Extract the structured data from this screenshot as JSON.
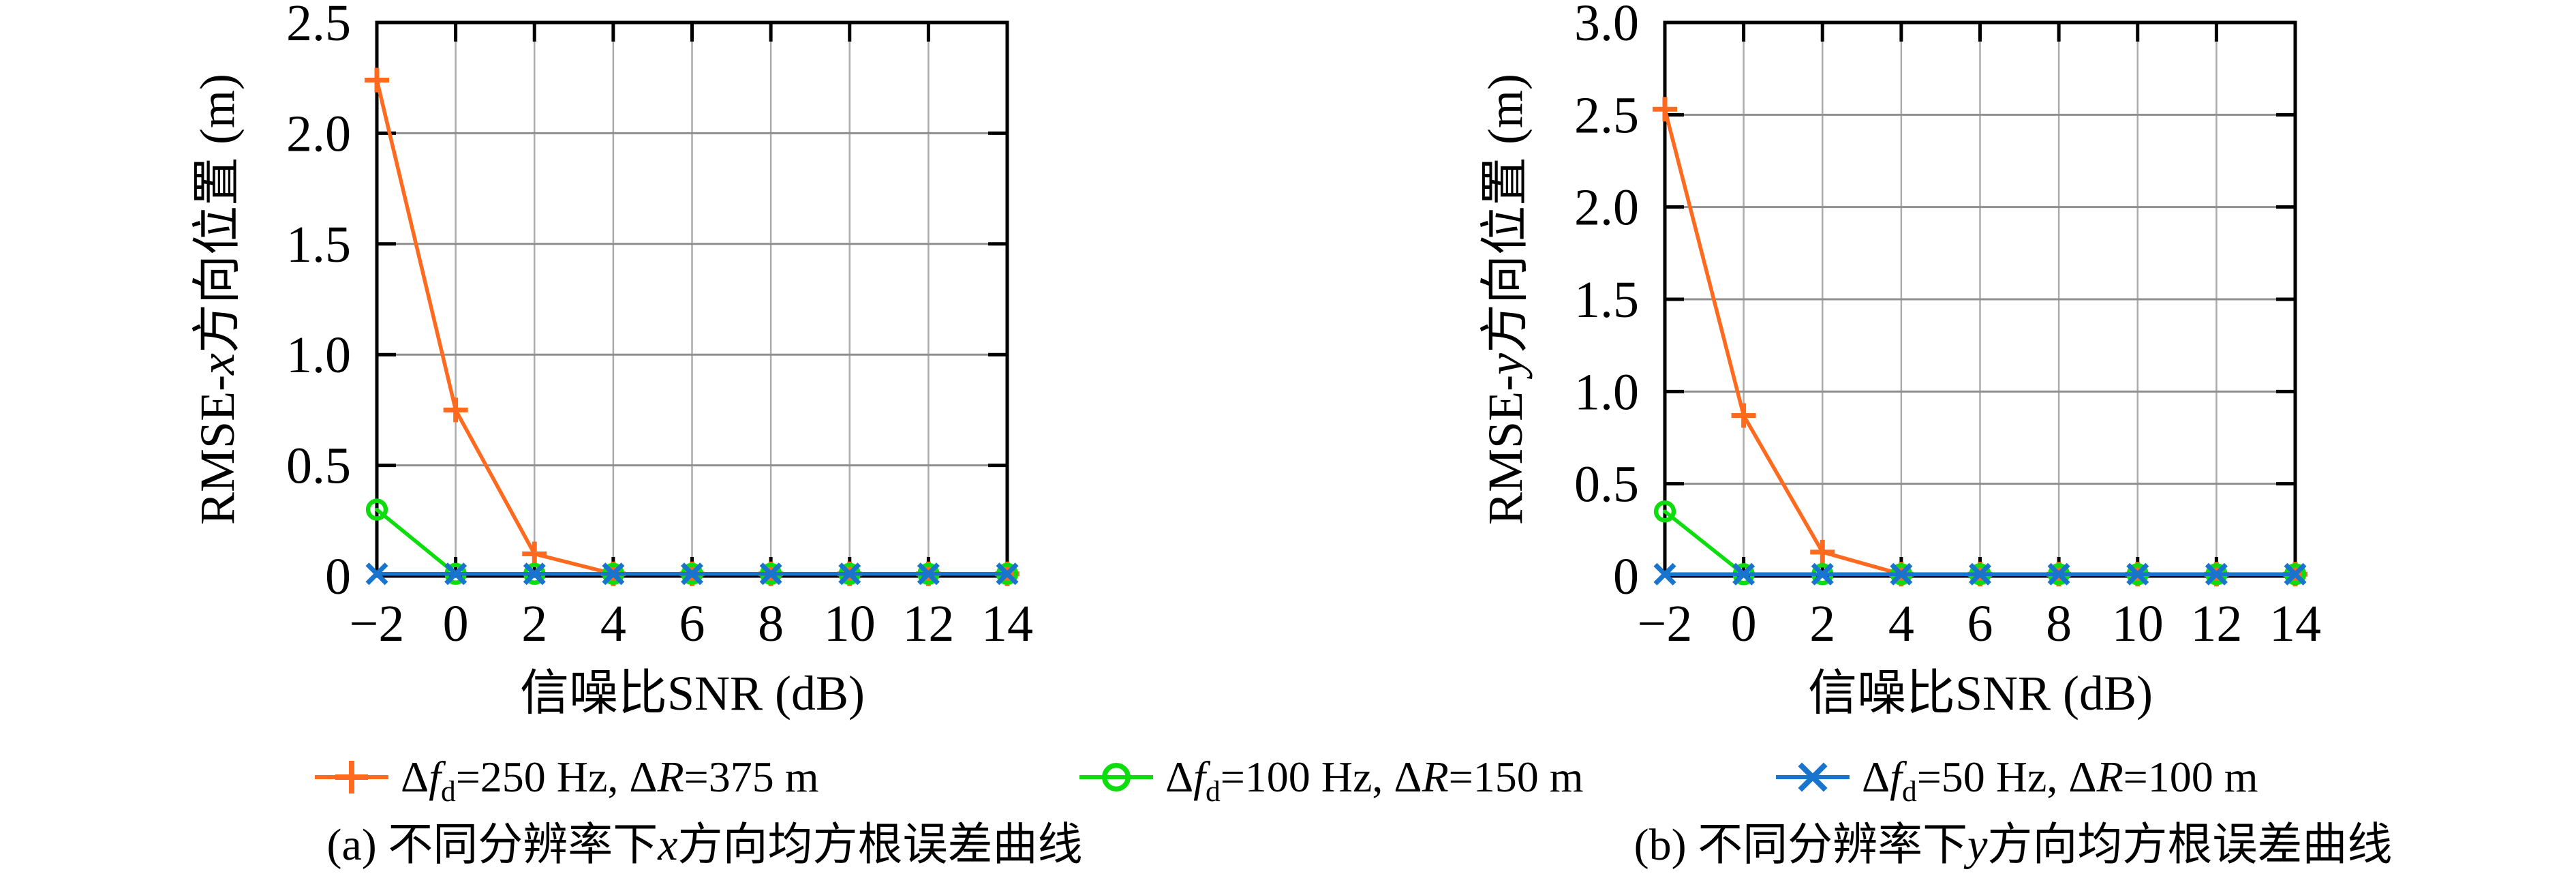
{
  "figure": {
    "background": "#ffffff"
  },
  "style": {
    "axis_color": "#000000",
    "grid_vertical_color": "#ababab",
    "grid_horizontal_color": "#8f8f8f",
    "text_color": "#000000",
    "series_colors": {
      "s250": "#ff6a1e",
      "s100": "#0ddd0d",
      "s50": "#1874cd"
    }
  },
  "legend": {
    "position": "below",
    "entries": [
      {
        "id": "s250",
        "marker": "plus",
        "color": "#ff6a1e",
        "label": "Δf_d=250 Hz, ΔR=375 m",
        "label_parts": [
          [
            "t",
            "Δ"
          ],
          [
            "i",
            "f"
          ],
          [
            "sub",
            "d"
          ],
          [
            "t",
            "=250 Hz, Δ"
          ],
          [
            "i",
            "R"
          ],
          [
            "t",
            "=375 m"
          ]
        ]
      },
      {
        "id": "s100",
        "marker": "circle",
        "color": "#0ddd0d",
        "label": "Δf_d=100 Hz, ΔR=150 m",
        "label_parts": [
          [
            "t",
            "Δ"
          ],
          [
            "i",
            "f"
          ],
          [
            "sub",
            "d"
          ],
          [
            "t",
            "=100 Hz, Δ"
          ],
          [
            "i",
            "R"
          ],
          [
            "t",
            "=150 m"
          ]
        ]
      },
      {
        "id": "s50",
        "marker": "cross",
        "color": "#1874cd",
        "label": "Δf_d=50 Hz, ΔR=100 m",
        "label_parts": [
          [
            "t",
            "Δ"
          ],
          [
            "i",
            "f"
          ],
          [
            "sub",
            "d"
          ],
          [
            "t",
            "=50 Hz, Δ"
          ],
          [
            "i",
            "R"
          ],
          [
            "t",
            "=100 m"
          ]
        ]
      }
    ]
  },
  "chart_data": [
    {
      "id": "a",
      "type": "line",
      "caption": "(a) 不同分辨率下x方向均方根误差曲线",
      "caption_parts": [
        [
          "t",
          "(a) 不同分辨率下"
        ],
        [
          "i",
          "x"
        ],
        [
          "t",
          "方向均方根误差曲线"
        ]
      ],
      "xlabel": "信噪比SNR (dB)",
      "ylabel": "RMSE-x方向位置 (m)",
      "ylabel_parts": [
        [
          "t",
          "RMSE-"
        ],
        [
          "i",
          "x"
        ],
        [
          "t",
          "方向位置 (m)"
        ]
      ],
      "x": [
        -2,
        0,
        2,
        4,
        6,
        8,
        10,
        12,
        14
      ],
      "xlim": [
        -2,
        14
      ],
      "ylim": [
        0,
        2.5
      ],
      "xticks": [
        -2,
        0,
        2,
        4,
        6,
        8,
        10,
        12,
        14
      ],
      "xtick_labels": [
        "−2",
        "0",
        "2",
        "4",
        "6",
        "8",
        "10",
        "12",
        "14"
      ],
      "ytick_values": [
        0,
        0.5,
        1.0,
        1.5,
        2.0,
        2.5
      ],
      "ytick_labels": [
        "0",
        "0.5",
        "1.0",
        "1.5",
        "2.0",
        "2.5"
      ],
      "grid": true,
      "series": [
        {
          "legend": "s250",
          "name": "Δf_d=250 Hz, ΔR=375 m",
          "marker": "plus",
          "color": "#ff6a1e",
          "values": [
            2.24,
            0.75,
            0.1,
            0.01,
            0.01,
            0.01,
            0.01,
            0.01,
            0.01
          ]
        },
        {
          "legend": "s100",
          "name": "Δf_d=100 Hz, ΔR=150 m",
          "marker": "circle",
          "color": "#0ddd0d",
          "values": [
            0.3,
            0.01,
            0.01,
            0.01,
            0.01,
            0.01,
            0.01,
            0.01,
            0.01
          ]
        },
        {
          "legend": "s50",
          "name": "Δf_d=50 Hz, ΔR=100 m",
          "marker": "cross",
          "color": "#1874cd",
          "values": [
            0.01,
            0.01,
            0.01,
            0.01,
            0.01,
            0.01,
            0.01,
            0.01,
            0.01
          ]
        }
      ]
    },
    {
      "id": "b",
      "type": "line",
      "caption": "(b) 不同分辨率下y方向均方根误差曲线",
      "caption_parts": [
        [
          "t",
          "(b) 不同分辨率下"
        ],
        [
          "i",
          "y"
        ],
        [
          "t",
          "方向均方根误差曲线"
        ]
      ],
      "xlabel": "信噪比SNR (dB)",
      "ylabel": "RMSE-y方向位置 (m)",
      "ylabel_parts": [
        [
          "t",
          "RMSE-"
        ],
        [
          "i",
          "y"
        ],
        [
          "t",
          "方向位置 (m)"
        ]
      ],
      "x": [
        -2,
        0,
        2,
        4,
        6,
        8,
        10,
        12,
        14
      ],
      "xlim": [
        -2,
        14
      ],
      "ylim": [
        0,
        3.0
      ],
      "xticks": [
        -2,
        0,
        2,
        4,
        6,
        8,
        10,
        12,
        14
      ],
      "xtick_labels": [
        "−2",
        "0",
        "2",
        "4",
        "6",
        "8",
        "10",
        "12",
        "14"
      ],
      "ytick_values": [
        0,
        0.5,
        1.0,
        1.5,
        2.0,
        2.5,
        3.0
      ],
      "ytick_labels": [
        "0",
        "0.5",
        "1.0",
        "1.5",
        "2.0",
        "2.5",
        "3.0"
      ],
      "grid": true,
      "series": [
        {
          "legend": "s250",
          "name": "Δf_d=250 Hz, ΔR=375 m",
          "marker": "plus",
          "color": "#ff6a1e",
          "values": [
            2.53,
            0.87,
            0.13,
            0.01,
            0.01,
            0.01,
            0.01,
            0.01,
            0.01
          ]
        },
        {
          "legend": "s100",
          "name": "Δf_d=100 Hz, ΔR=150 m",
          "marker": "circle",
          "color": "#0ddd0d",
          "values": [
            0.35,
            0.01,
            0.01,
            0.01,
            0.01,
            0.01,
            0.01,
            0.01,
            0.01
          ]
        },
        {
          "legend": "s50",
          "name": "Δf_d=50 Hz, ΔR=100 m",
          "marker": "cross",
          "color": "#1874cd",
          "values": [
            0.01,
            0.01,
            0.01,
            0.01,
            0.01,
            0.01,
            0.01,
            0.01,
            0.01
          ]
        }
      ]
    }
  ]
}
